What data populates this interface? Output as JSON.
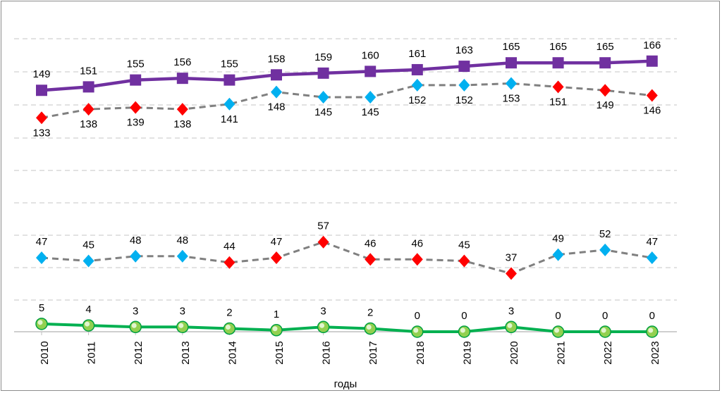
{
  "chart_data": {
    "type": "line",
    "categories": [
      "2010",
      "2011",
      "2012",
      "2013",
      "2014",
      "2015",
      "2016",
      "2017",
      "2018",
      "2019",
      "2020",
      "2021",
      "2022",
      "2023"
    ],
    "xlabel": "годы",
    "ylabel": "",
    "title": "",
    "grid": true,
    "legend": "none",
    "series": [
      {
        "style": "solid",
        "color": "#7030a0",
        "marker": "square",
        "values": [
          149,
          151,
          155,
          156,
          155,
          158,
          159,
          160,
          161,
          163,
          165,
          165,
          165,
          166
        ],
        "labels": [
          "149",
          "151",
          "155",
          "156",
          "155",
          "158",
          "159",
          "160",
          "161",
          "163",
          "165",
          "165",
          "165",
          "166"
        ],
        "label_position": "above"
      },
      {
        "style": "dashed",
        "color": "#808080",
        "marker": "diamond",
        "values": [
          133,
          138,
          139,
          138,
          141,
          148,
          145,
          145,
          152,
          152,
          153,
          151,
          149,
          146
        ],
        "labels": [
          "133",
          "138",
          "139",
          "138",
          "141",
          "148",
          "145",
          "145",
          "152",
          "152",
          "153",
          "151",
          "149",
          "146"
        ],
        "marker_colors": [
          "#ff0000",
          "#ff0000",
          "#ff0000",
          "#ff0000",
          "#00b0f0",
          "#00b0f0",
          "#00b0f0",
          "#00b0f0",
          "#00b0f0",
          "#00b0f0",
          "#00b0f0",
          "#ff0000",
          "#ff0000",
          "#ff0000"
        ],
        "label_position": "below"
      },
      {
        "style": "dashed",
        "color": "#808080",
        "marker": "diamond",
        "values": [
          47,
          45,
          48,
          48,
          44,
          47,
          57,
          46,
          46,
          45,
          37,
          49,
          52,
          47
        ],
        "labels": [
          "47",
          "45",
          "48",
          "48",
          "44",
          "47",
          "57",
          "46",
          "46",
          "45",
          "37",
          "49",
          "52",
          "47"
        ],
        "marker_colors": [
          "#00b0f0",
          "#00b0f0",
          "#00b0f0",
          "#00b0f0",
          "#ff0000",
          "#ff0000",
          "#ff0000",
          "#ff0000",
          "#ff0000",
          "#ff0000",
          "#ff0000",
          "#00b0f0",
          "#00b0f0",
          "#00b0f0"
        ],
        "label_position": "above"
      },
      {
        "style": "solid",
        "color": "#00b050",
        "marker": "circle",
        "values": [
          5,
          4,
          3,
          3,
          2,
          1,
          3,
          2,
          0,
          0,
          3,
          0,
          0,
          0
        ],
        "labels": [
          "5",
          "4",
          "3",
          "3",
          "2",
          "1",
          "3",
          "2",
          "0",
          "0",
          "3",
          "0",
          "0",
          "0"
        ],
        "label_position": "above"
      }
    ]
  }
}
